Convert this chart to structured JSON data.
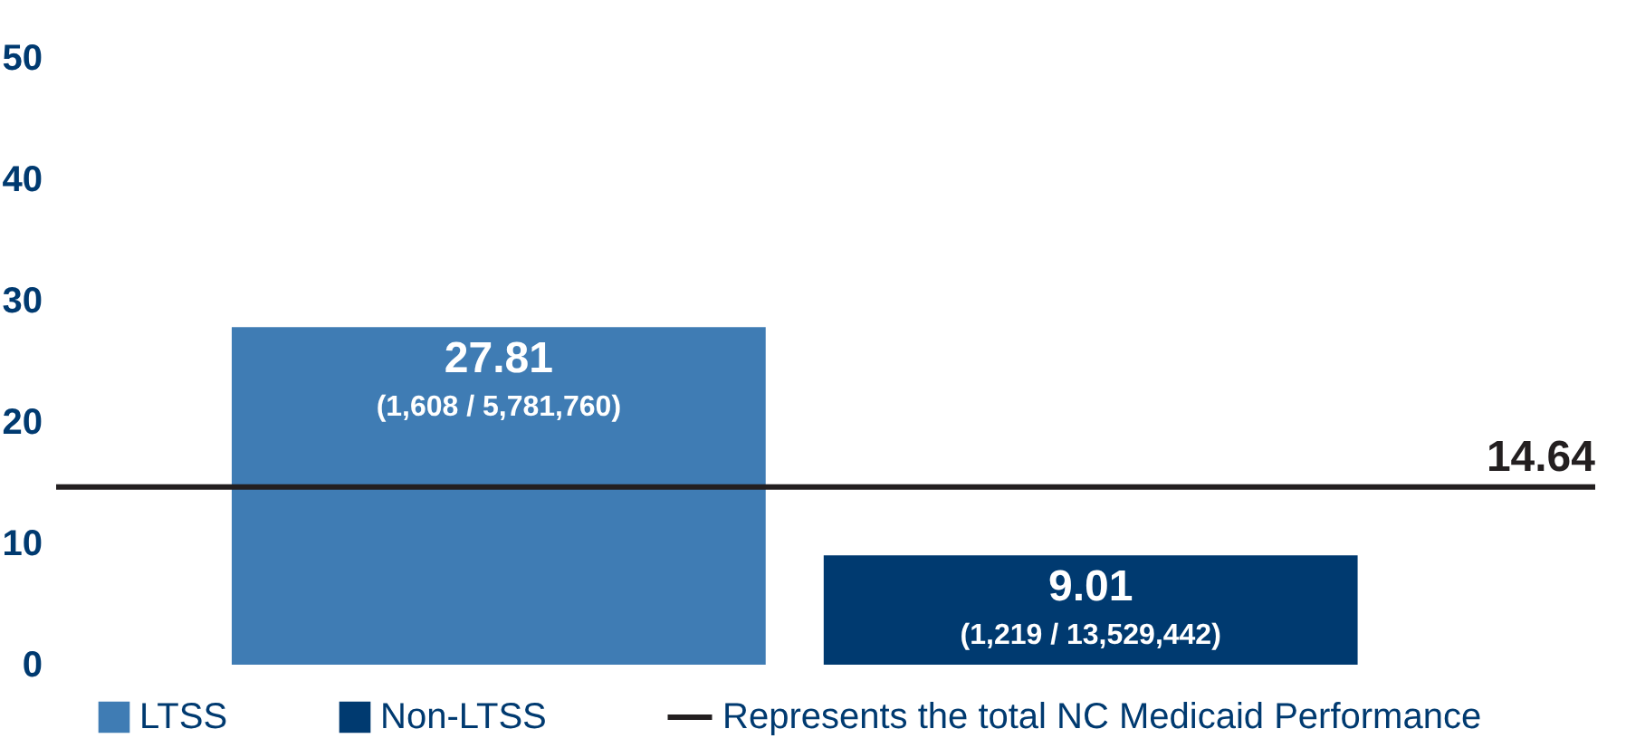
{
  "chart_data": {
    "type": "bar",
    "categories": [
      null,
      null
    ],
    "series": [
      {
        "name": "LTSS",
        "color": "#3f7cb4",
        "values": [
          27.81,
          null
        ],
        "value_labels": [
          "27.81\n(1,608 / 5,781,760)",
          null
        ]
      },
      {
        "name": "Non-LTSS",
        "color": "#003a70",
        "values": [
          null,
          9.01
        ],
        "value_labels": [
          null,
          "9.01\n(1,219 / 13,529,442)"
        ]
      }
    ],
    "ylim": [
      0,
      50
    ],
    "yticks": [
      0,
      10,
      20,
      30,
      40,
      50
    ],
    "grid": false,
    "legend": "bottom",
    "tick_labels": "y",
    "ref_lines": [
      {
        "axis": "y",
        "value": 14.64,
        "label": "Represents the total NC Medicaid Performance",
        "color": "#231f20"
      }
    ],
    "annotations": [
      {
        "text": "14.64",
        "y": 14.64
      }
    ]
  }
}
